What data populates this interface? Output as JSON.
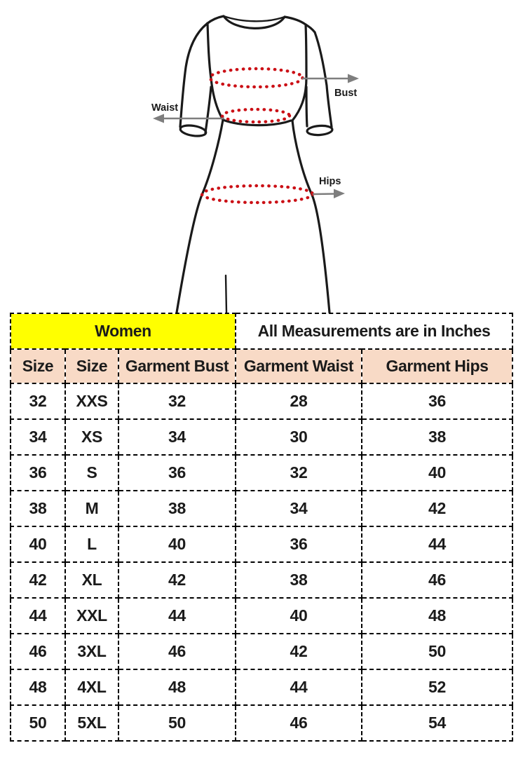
{
  "diagram": {
    "labels": {
      "bust": "Bust",
      "waist": "Waist",
      "hips": "Hips"
    },
    "colors": {
      "outline": "#1a1a1a",
      "measure_dots": "#cb1016",
      "arrow": "#7e7e7e",
      "label_text": "#1a1a1a"
    }
  },
  "table_colors": {
    "women_bg": "#ffff00",
    "units_bg": "#ffffff",
    "column_header_bg": "#f8dac6",
    "border": "#000000",
    "text": "#1b1b1b"
  },
  "chart_data": {
    "type": "table",
    "title": "Women",
    "subtitle": "All Measurements are in Inches",
    "columns": [
      "Size",
      "Size",
      "Garment Bust",
      "Garment Waist",
      "Garment Hips"
    ],
    "rows": [
      [
        "32",
        "XXS",
        "32",
        "28",
        "36"
      ],
      [
        "34",
        "XS",
        "34",
        "30",
        "38"
      ],
      [
        "36",
        "S",
        "36",
        "32",
        "40"
      ],
      [
        "38",
        "M",
        "38",
        "34",
        "42"
      ],
      [
        "40",
        "L",
        "40",
        "36",
        "44"
      ],
      [
        "42",
        "XL",
        "42",
        "38",
        "46"
      ],
      [
        "44",
        "XXL",
        "44",
        "40",
        "48"
      ],
      [
        "46",
        "3XL",
        "46",
        "42",
        "50"
      ],
      [
        "48",
        "4XL",
        "48",
        "44",
        "52"
      ],
      [
        "50",
        "5XL",
        "50",
        "46",
        "54"
      ]
    ]
  }
}
